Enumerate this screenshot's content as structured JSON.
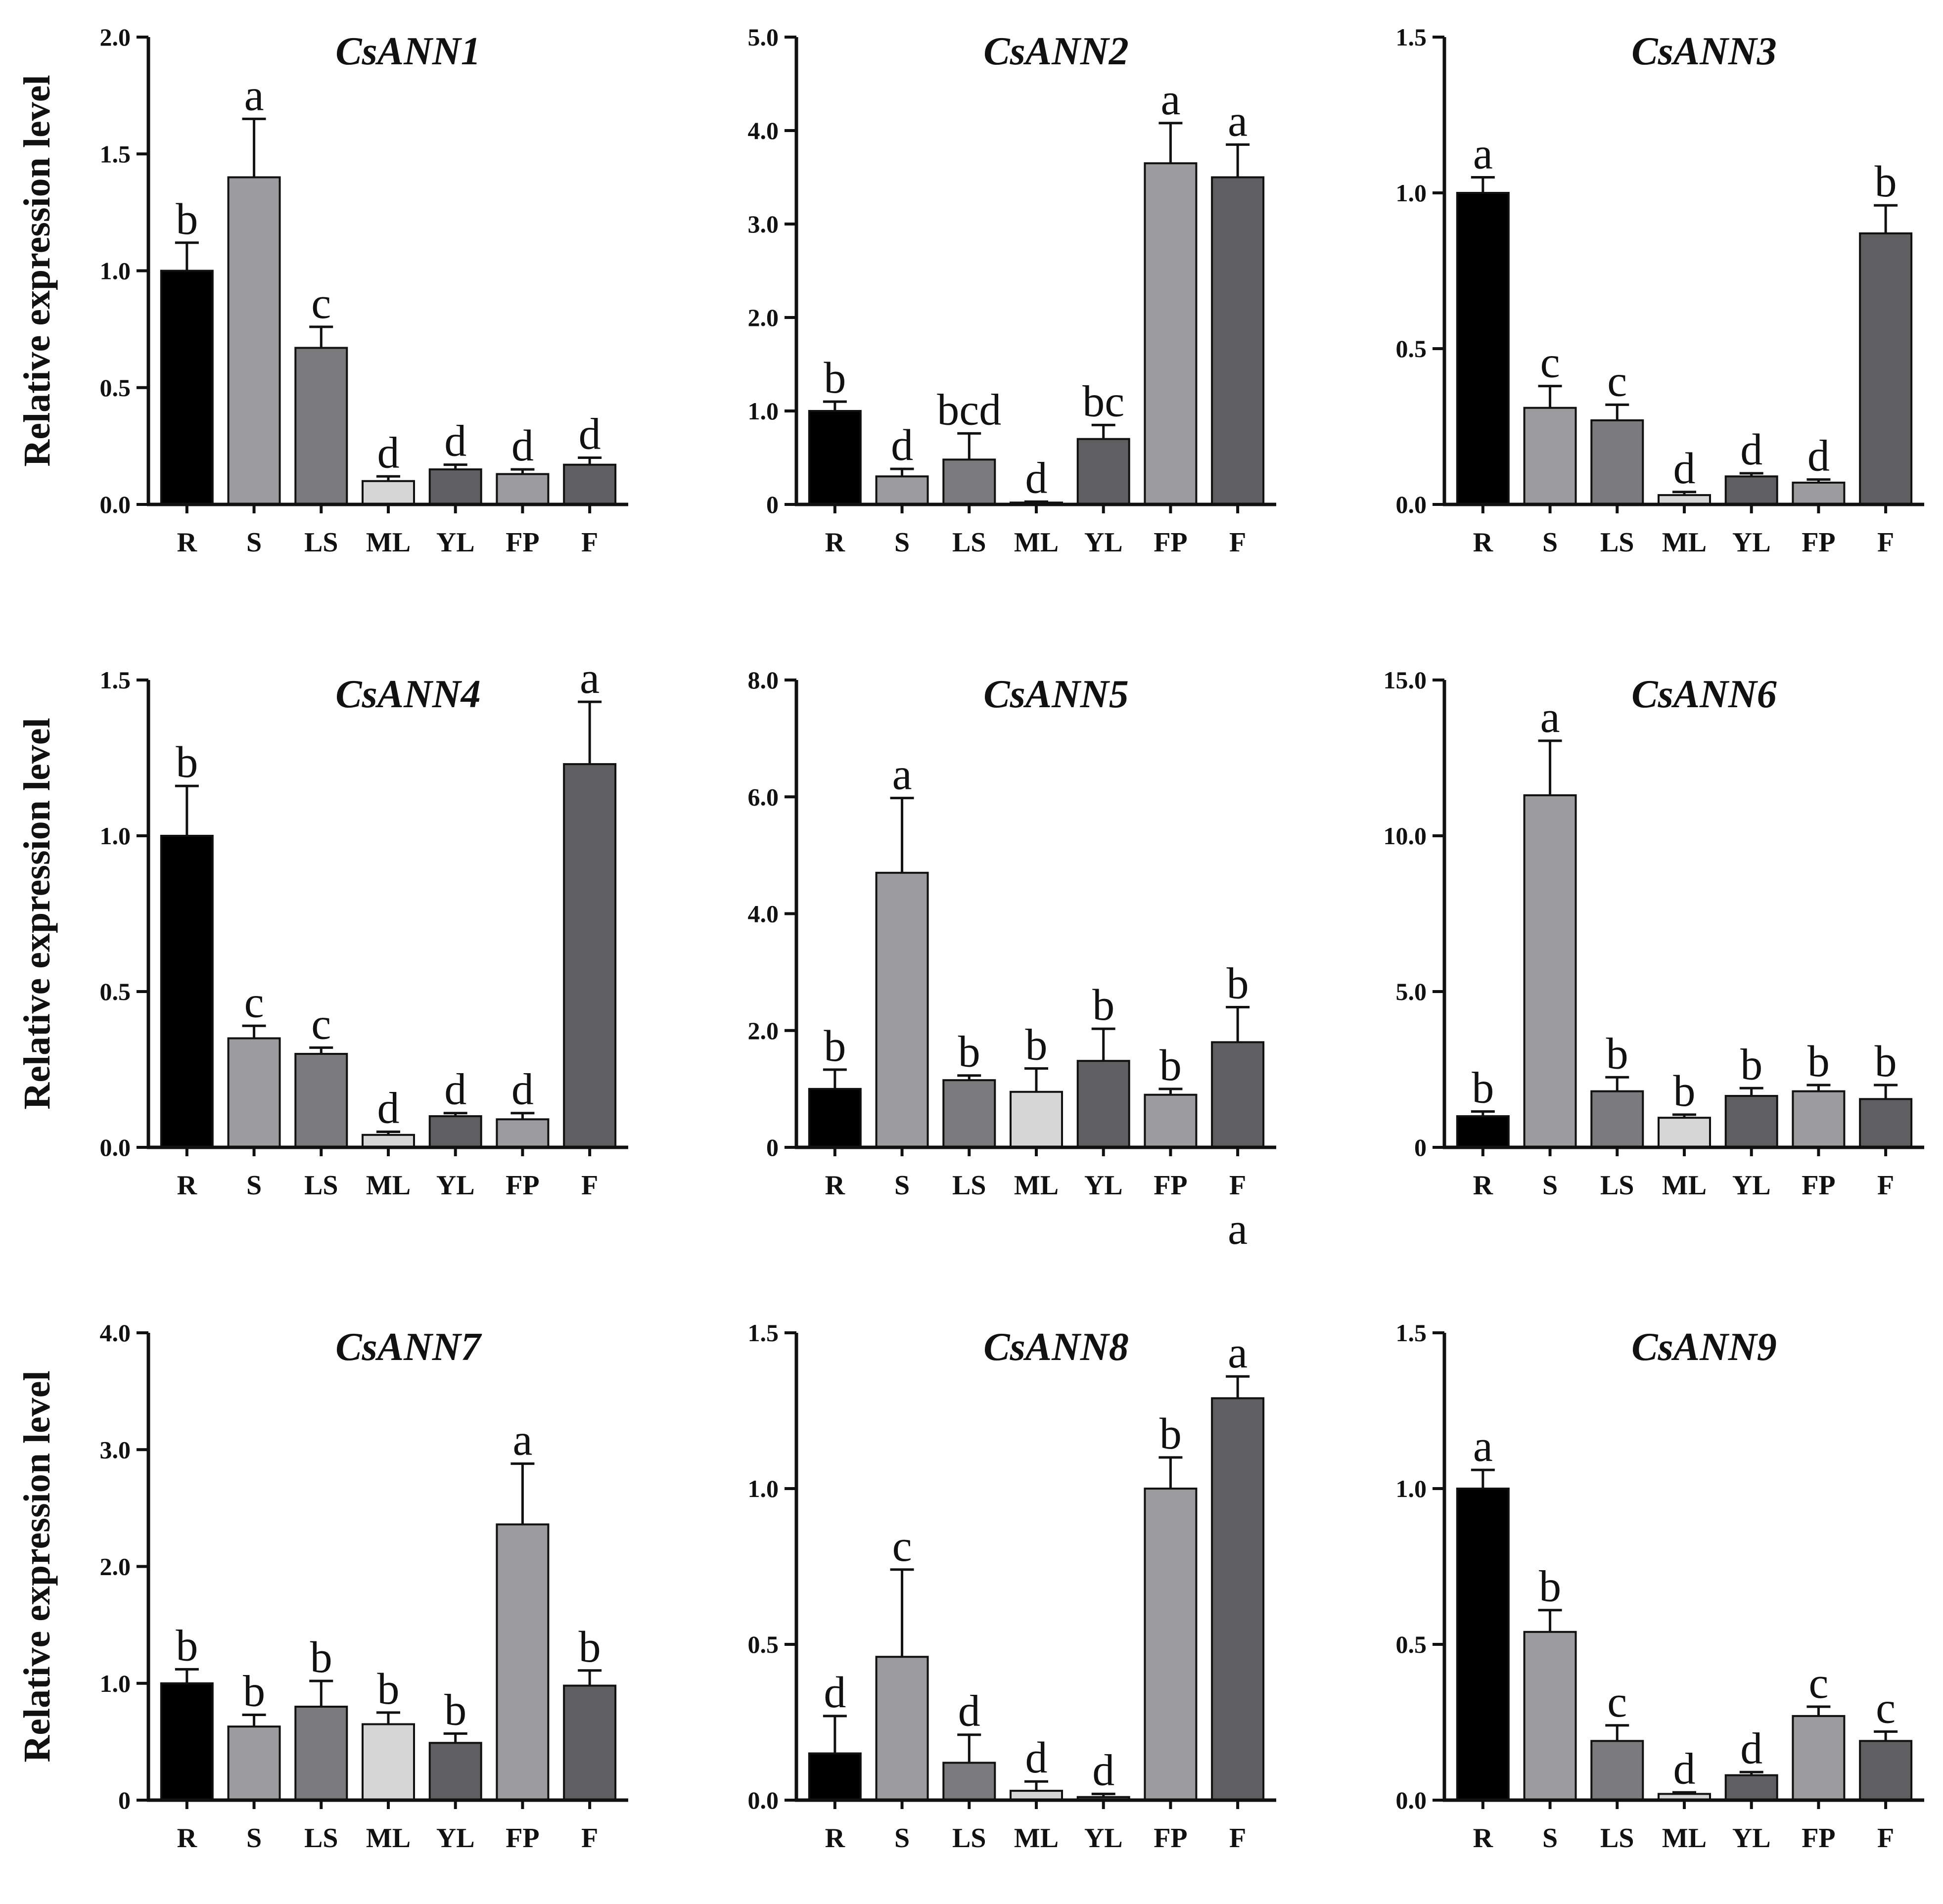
{
  "chart_data": [
    {
      "type": "bar",
      "title": "CsANN1",
      "ylabel": "Relative expression level",
      "categories": [
        "R",
        "S",
        "LS",
        "ML",
        "YL",
        "FP",
        "F"
      ],
      "values": [
        1.0,
        1.4,
        0.67,
        0.1,
        0.15,
        0.13,
        0.17
      ],
      "errors": [
        0.12,
        0.25,
        0.09,
        0.02,
        0.02,
        0.02,
        0.03
      ],
      "letters": [
        "b",
        "a",
        "c",
        "d",
        "d",
        "d",
        "d"
      ],
      "ylim": [
        0,
        2.0
      ],
      "yticks": [
        0,
        0.5,
        1.0,
        1.5,
        2.0
      ],
      "ytick_labels": [
        "0.0",
        "0.5",
        "1.0",
        "1.5",
        "2.0"
      ]
    },
    {
      "type": "bar",
      "title": "CsANN2",
      "ylabel": "",
      "categories": [
        "R",
        "S",
        "LS",
        "ML",
        "YL",
        "FP",
        "F"
      ],
      "values": [
        1.0,
        0.3,
        0.48,
        0.02,
        0.7,
        3.65,
        3.5
      ],
      "errors": [
        0.1,
        0.08,
        0.28,
        0.01,
        0.15,
        0.43,
        0.35
      ],
      "letters": [
        "b",
        "d",
        "bcd",
        "d",
        "bc",
        "a",
        "a"
      ],
      "ylim": [
        0,
        5.0
      ],
      "yticks": [
        0,
        1.0,
        2.0,
        3.0,
        4.0,
        5.0
      ],
      "ytick_labels": [
        "0",
        "1.0",
        "2.0",
        "3.0",
        "4.0",
        "5.0"
      ]
    },
    {
      "type": "bar",
      "title": "CsANN3",
      "ylabel": "",
      "categories": [
        "R",
        "S",
        "LS",
        "ML",
        "YL",
        "FP",
        "F"
      ],
      "values": [
        1.0,
        0.31,
        0.27,
        0.03,
        0.09,
        0.07,
        0.87
      ],
      "errors": [
        0.05,
        0.07,
        0.05,
        0.01,
        0.01,
        0.01,
        0.09
      ],
      "letters": [
        "a",
        "c",
        "c",
        "d",
        "d",
        "d",
        "b"
      ],
      "ylim": [
        0,
        1.5
      ],
      "yticks": [
        0,
        0.5,
        1.0,
        1.5
      ],
      "ytick_labels": [
        "0.0",
        "0.5",
        "1.0",
        "1.5"
      ]
    },
    {
      "type": "bar",
      "title": "CsANN4",
      "ylabel": "Relative expression level",
      "categories": [
        "R",
        "S",
        "LS",
        "ML",
        "YL",
        "FP",
        "F"
      ],
      "values": [
        1.0,
        0.35,
        0.3,
        0.04,
        0.1,
        0.09,
        1.23
      ],
      "errors": [
        0.16,
        0.04,
        0.02,
        0.01,
        0.01,
        0.02,
        0.2
      ],
      "letters": [
        "b",
        "c",
        "c",
        "d",
        "d",
        "d",
        "a"
      ],
      "ylim": [
        0,
        1.5
      ],
      "yticks": [
        0,
        0.5,
        1.0,
        1.5
      ],
      "ytick_labels": [
        "0.0",
        "0.5",
        "1.0",
        "1.5"
      ]
    },
    {
      "type": "bar",
      "title": "CsANN5",
      "ylabel": "",
      "categories": [
        "R",
        "S",
        "LS",
        "ML",
        "YL",
        "FP",
        "F"
      ],
      "values": [
        1.0,
        4.7,
        1.15,
        0.95,
        1.48,
        0.9,
        1.8
      ],
      "errors": [
        0.33,
        1.28,
        0.08,
        0.4,
        0.55,
        0.1,
        0.6
      ],
      "letters": [
        "b",
        "a",
        "b",
        "b",
        "b",
        "b",
        "b"
      ],
      "extra_label": "a",
      "ylim": [
        0,
        8.0
      ],
      "yticks": [
        0,
        2.0,
        4.0,
        6.0,
        8.0
      ],
      "ytick_labels": [
        "0",
        "2.0",
        "4.0",
        "6.0",
        "8.0"
      ]
    },
    {
      "type": "bar",
      "title": "CsANN6",
      "ylabel": "",
      "categories": [
        "R",
        "S",
        "LS",
        "ML",
        "YL",
        "FP",
        "F"
      ],
      "values": [
        1.0,
        11.3,
        1.8,
        0.95,
        1.65,
        1.8,
        1.55
      ],
      "errors": [
        0.15,
        1.75,
        0.45,
        0.1,
        0.25,
        0.2,
        0.45
      ],
      "letters": [
        "b",
        "a",
        "b",
        "b",
        "b",
        "b",
        "b"
      ],
      "ylim": [
        0,
        15.0
      ],
      "yticks": [
        0,
        5.0,
        10.0,
        15.0
      ],
      "ytick_labels": [
        "0",
        "5.0",
        "10.0",
        "15.0"
      ]
    },
    {
      "type": "bar",
      "title": "CsANN7",
      "ylabel": "Relative expression level",
      "categories": [
        "R",
        "S",
        "LS",
        "ML",
        "YL",
        "FP",
        "F"
      ],
      "values": [
        1.0,
        0.63,
        0.8,
        0.65,
        0.49,
        2.36,
        0.98
      ],
      "errors": [
        0.12,
        0.1,
        0.22,
        0.1,
        0.08,
        0.52,
        0.13
      ],
      "letters": [
        "b",
        "b",
        "b",
        "b",
        "b",
        "a",
        "b"
      ],
      "ylim": [
        0,
        4.0
      ],
      "yticks": [
        0,
        1.0,
        2.0,
        3.0,
        4.0
      ],
      "ytick_labels": [
        "0",
        "1.0",
        "2.0",
        "3.0",
        "4.0"
      ]
    },
    {
      "type": "bar",
      "title": "CsANN8",
      "ylabel": "",
      "categories": [
        "R",
        "S",
        "LS",
        "ML",
        "YL",
        "FP",
        "F"
      ],
      "values": [
        0.15,
        0.46,
        0.12,
        0.03,
        0.01,
        1.0,
        1.29
      ],
      "errors": [
        0.12,
        0.28,
        0.09,
        0.03,
        0.01,
        0.1,
        0.07
      ],
      "letters": [
        "d",
        "c",
        "d",
        "d",
        "d",
        "b",
        "a"
      ],
      "ylim": [
        0,
        1.5
      ],
      "yticks": [
        0,
        0.5,
        1.0,
        1.5
      ],
      "ytick_labels": [
        "0.0",
        "0.5",
        "1.0",
        "1.5"
      ]
    },
    {
      "type": "bar",
      "title": "CsANN9",
      "ylabel": "",
      "categories": [
        "R",
        "S",
        "LS",
        "ML",
        "YL",
        "FP",
        "F"
      ],
      "values": [
        1.0,
        0.54,
        0.19,
        0.02,
        0.08,
        0.27,
        0.19
      ],
      "errors": [
        0.06,
        0.07,
        0.05,
        0.005,
        0.01,
        0.03,
        0.03
      ],
      "letters": [
        "a",
        "b",
        "c",
        "d",
        "d",
        "c",
        "c"
      ],
      "ylim": [
        0,
        1.5
      ],
      "yticks": [
        0,
        0.5,
        1.0,
        1.5
      ],
      "ytick_labels": [
        "0.0",
        "0.5",
        "1.0",
        "1.5"
      ]
    }
  ]
}
